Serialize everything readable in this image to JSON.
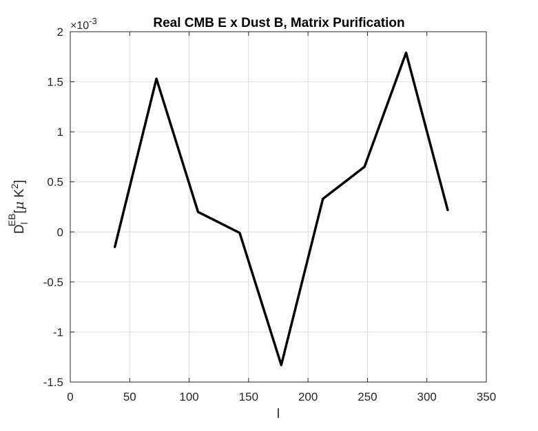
{
  "chart_data": {
    "type": "line",
    "title": "Real CMB E x Dust B, Matrix Purification",
    "xlabel": "l",
    "ylabel": {
      "base": "D",
      "sub": "l",
      "sup": "EB",
      "unit_open": "[",
      "unit_mu": "μ",
      "unit_k": " K",
      "unit_k_sup": "2",
      "unit_close": "]"
    },
    "y_multiplier": {
      "base": "×10",
      "exponent": "-3"
    },
    "xlim": [
      0,
      350
    ],
    "ylim": [
      -1.5,
      2
    ],
    "xticks": [
      0,
      50,
      100,
      150,
      200,
      250,
      300,
      350
    ],
    "yticks": [
      -1.5,
      -1,
      -0.5,
      0,
      0.5,
      1,
      1.5,
      2
    ],
    "xtick_labels": [
      "0",
      "50",
      "100",
      "150",
      "200",
      "250",
      "300",
      "350"
    ],
    "ytick_labels": [
      "-1.5",
      "-1",
      "-0.5",
      "0",
      "0.5",
      "1",
      "1.5",
      "2"
    ],
    "grid": true,
    "series": [
      {
        "color": "#000000",
        "x": [
          37.5,
          72.5,
          107.5,
          142.5,
          177.5,
          212.5,
          247.5,
          282.5,
          317.5
        ],
        "y": [
          -0.15,
          1.53,
          0.2,
          -0.01,
          -1.33,
          0.33,
          0.65,
          1.79,
          0.22
        ]
      }
    ]
  }
}
